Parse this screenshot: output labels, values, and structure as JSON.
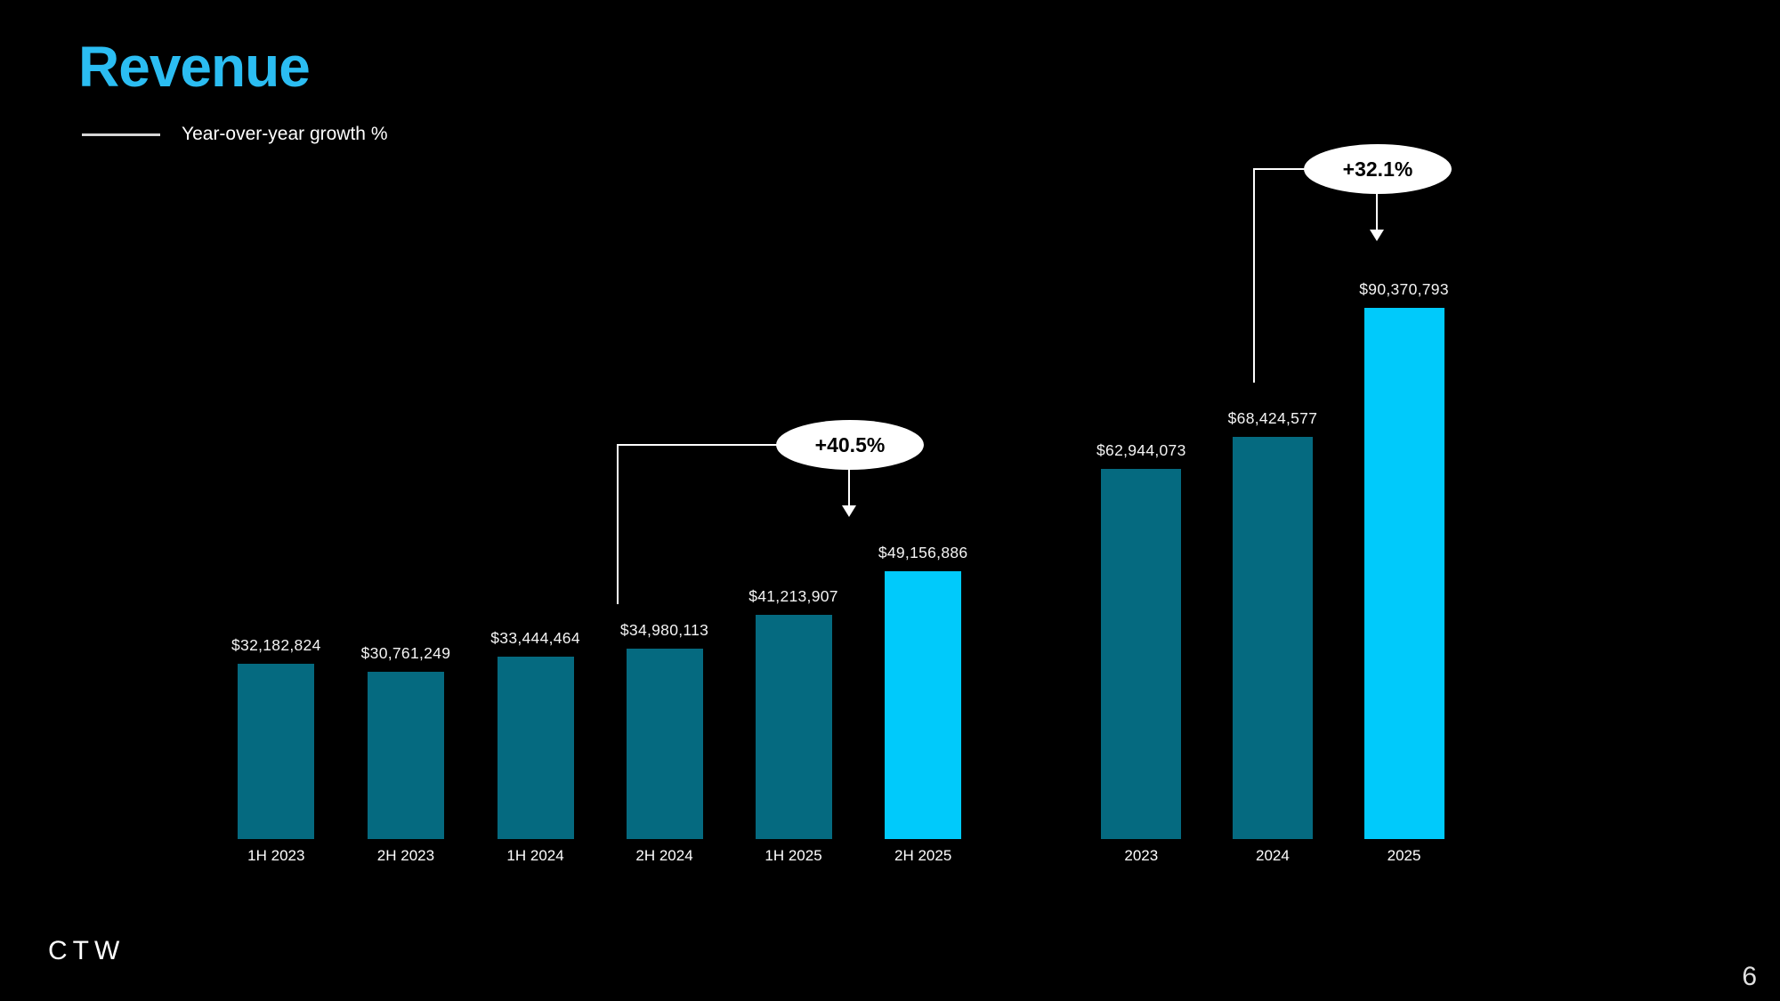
{
  "slide": {
    "title": "Revenue",
    "legend": {
      "label": "Year-over-year growth %"
    },
    "footer": {
      "logo": "CTW",
      "page_number": "6"
    }
  },
  "colors": {
    "background": "#000000",
    "title_accent": "#2BBDF2",
    "bar_primary": "#056A80",
    "bar_highlight": "#00CAFB",
    "text": "#FFFFFF",
    "legend_line": "#D6D6D6",
    "callout_bg": "#FFFFFF",
    "callout_text": "#000000",
    "page_number": "#E0E0E0"
  },
  "chart_data": [
    {
      "type": "bar",
      "group": "half-yearly-revenue",
      "categories": [
        "1H 2023",
        "2H 2023",
        "1H 2024",
        "2H 2024",
        "1H 2025",
        "2H 2025"
      ],
      "values": [
        32182824,
        30761249,
        33444464,
        34980113,
        41213907,
        49156886
      ],
      "value_labels": [
        "$32,182,824",
        "$30,761,249",
        "$33,444,464",
        "$34,980,113",
        "$41,213,907",
        "$49,156,886"
      ],
      "highlight_index": 5,
      "legend_position": "top-left",
      "grid": false,
      "annotation": {
        "label": "+40.5%",
        "from_category": "2H 2024",
        "to_category": "2H 2025"
      }
    },
    {
      "type": "bar",
      "group": "yearly-revenue",
      "categories": [
        "2023",
        "2024",
        "2025"
      ],
      "values": [
        62944073,
        68424577,
        90370793
      ],
      "value_labels": [
        "$62,944,073",
        "$68,424,577",
        "$90,370,793"
      ],
      "highlight_index": 2,
      "grid": false,
      "annotation": {
        "label": "+32.1%",
        "from_category": "2024",
        "to_category": "2025"
      }
    }
  ]
}
